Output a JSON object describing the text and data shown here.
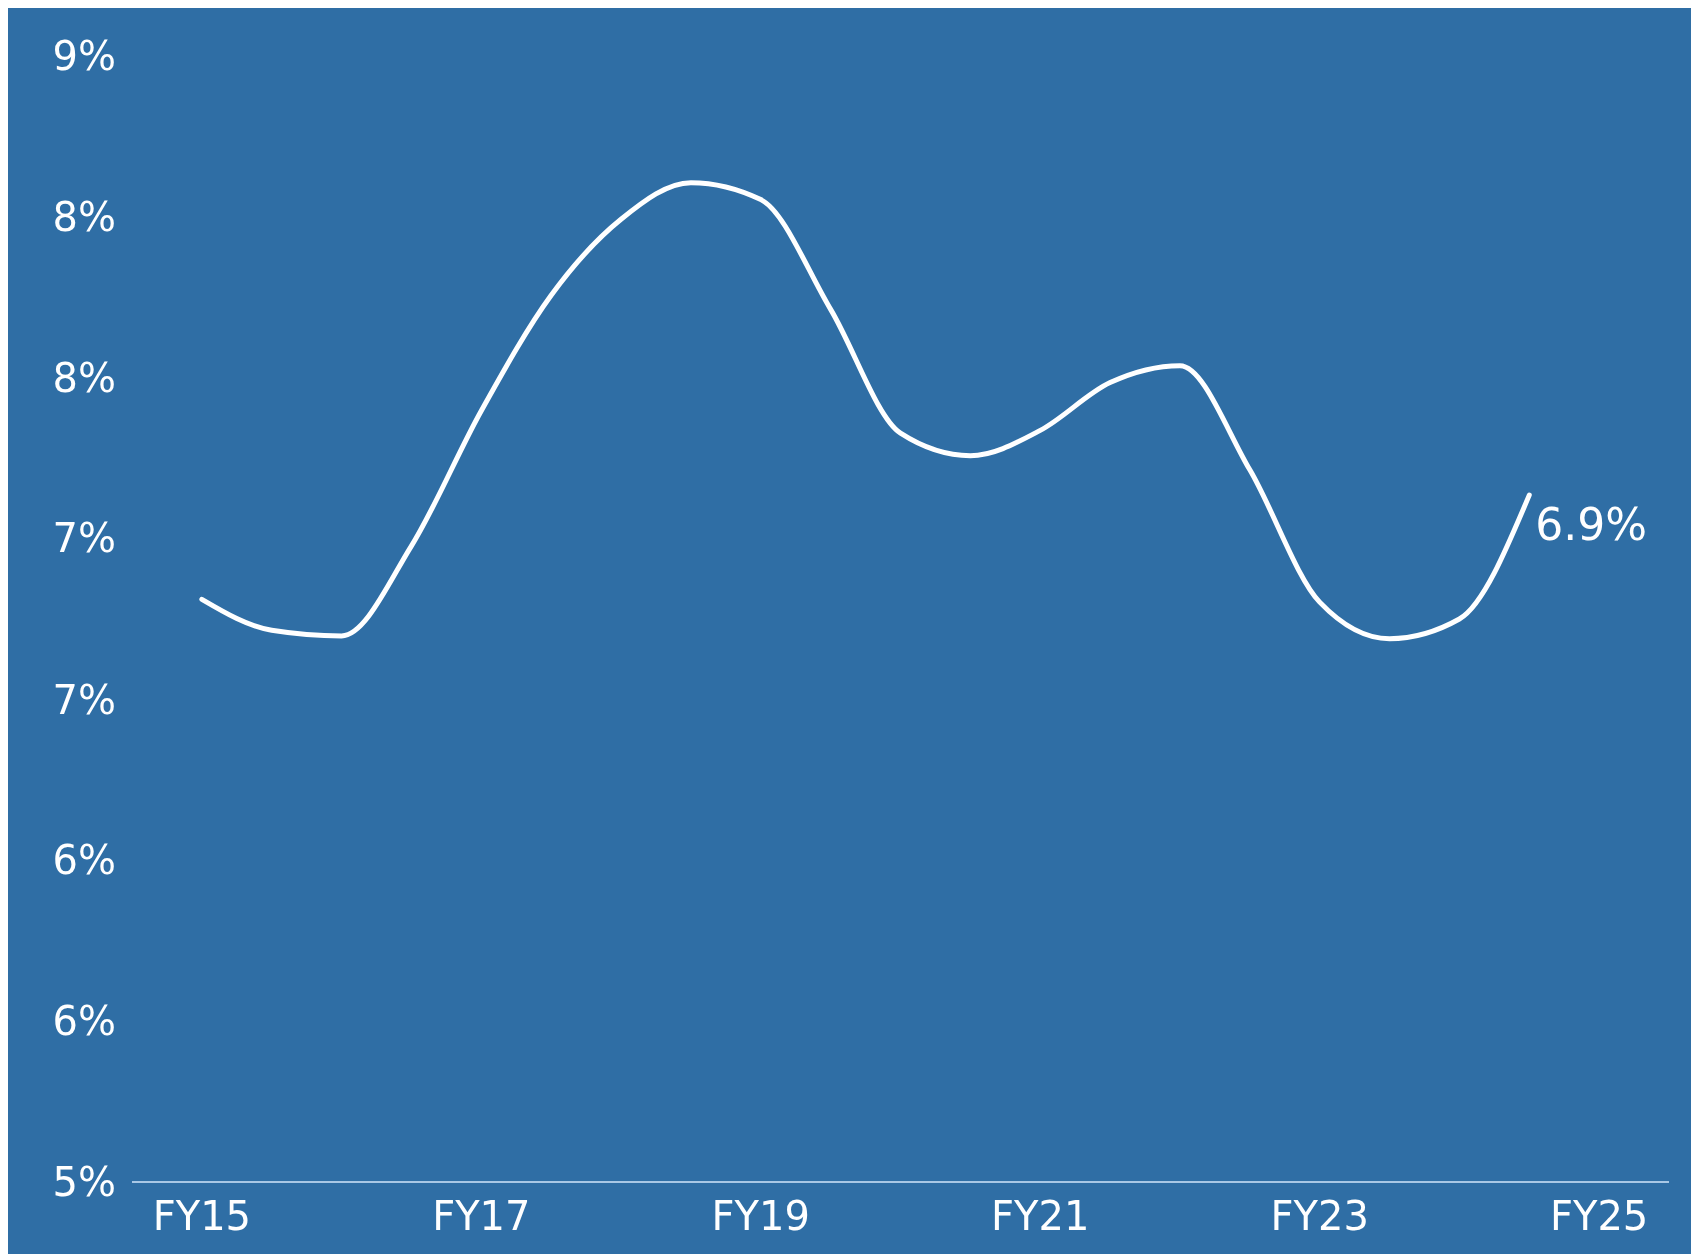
{
  "chart_data": {
    "type": "line",
    "categories": [
      "FY15",
      null,
      null,
      null,
      "FY17",
      null,
      null,
      null,
      "FY19",
      null,
      null,
      null,
      "FY21",
      null,
      null,
      null,
      "FY23",
      null,
      null,
      null,
      "FY25"
    ],
    "series": [
      {
        "color": "#ffffff",
        "values": [
          7.07,
          6.96,
          6.94,
          7.26,
          7.74,
          8.15,
          8.42,
          8.55,
          8.49,
          8.1,
          7.66,
          7.58,
          7.67,
          7.84,
          7.9,
          7.53,
          7.06,
          6.93,
          7.0,
          7.44,
          null
        ]
      }
    ],
    "ylim": [
      5,
      9
    ],
    "yticks": [
      {
        "value": 5,
        "label": "5%"
      },
      {
        "value": 5.571,
        "label": "6%"
      },
      {
        "value": 6.143,
        "label": "6%"
      },
      {
        "value": 6.714,
        "label": "7%"
      },
      {
        "value": 7.286,
        "label": "7%"
      },
      {
        "value": 7.857,
        "label": "8%"
      },
      {
        "value": 8.429,
        "label": "8%"
      },
      {
        "value": 9,
        "label": "9%"
      }
    ],
    "annotations": [
      "6.9%"
    ],
    "grid": false,
    "marker": "none",
    "line_style": "solid"
  }
}
